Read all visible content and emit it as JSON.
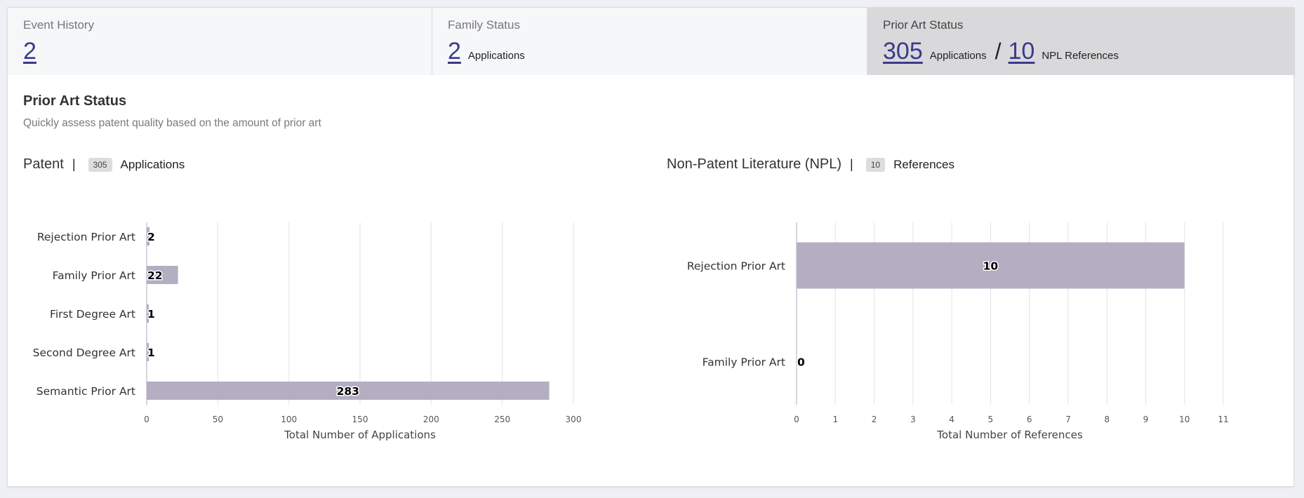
{
  "tabs": [
    {
      "label": "Event History",
      "value": "2",
      "unit": "",
      "active": false
    },
    {
      "label": "Family Status",
      "value": "2",
      "unit": "Applications",
      "active": false
    },
    {
      "label": "Prior Art Status",
      "value": "305",
      "unit": "Applications",
      "separator": "/",
      "value2": "10",
      "unit2": "NPL References",
      "active": true
    }
  ],
  "section": {
    "title": "Prior Art Status",
    "subtitle": "Quickly assess patent quality based on the amount of prior art"
  },
  "patent_header": {
    "name": "Patent",
    "pipe": "|",
    "count": "305",
    "label": "Applications"
  },
  "npl_header": {
    "name": "Non-Patent Literature (NPL)",
    "pipe": "|",
    "count": "10",
    "label": "References"
  },
  "colors": {
    "bar": "#b4aec2",
    "accent_link": "#3b3a8c",
    "active_tab": "#d9d9db"
  },
  "chart_data": [
    {
      "type": "bar",
      "orientation": "horizontal",
      "categories": [
        "Rejection Prior Art",
        "Family Prior Art",
        "First Degree Art",
        "Second Degree Art",
        "Semantic Prior Art"
      ],
      "values": [
        2,
        22,
        1,
        1,
        283
      ],
      "xlabel": "Total Number of Applications",
      "ylabel": "",
      "xlim": [
        0,
        300
      ],
      "xticks": [
        0,
        50,
        100,
        150,
        200,
        250,
        300
      ],
      "grid": true,
      "data_labels": true
    },
    {
      "type": "bar",
      "orientation": "horizontal",
      "categories": [
        "Rejection Prior Art",
        "Family Prior Art"
      ],
      "values": [
        10,
        0
      ],
      "xlabel": "Total Number of References",
      "ylabel": "",
      "xlim": [
        0,
        11
      ],
      "xticks": [
        0,
        1,
        2,
        3,
        4,
        5,
        6,
        7,
        8,
        9,
        10,
        11
      ],
      "grid": true,
      "data_labels": true
    }
  ]
}
